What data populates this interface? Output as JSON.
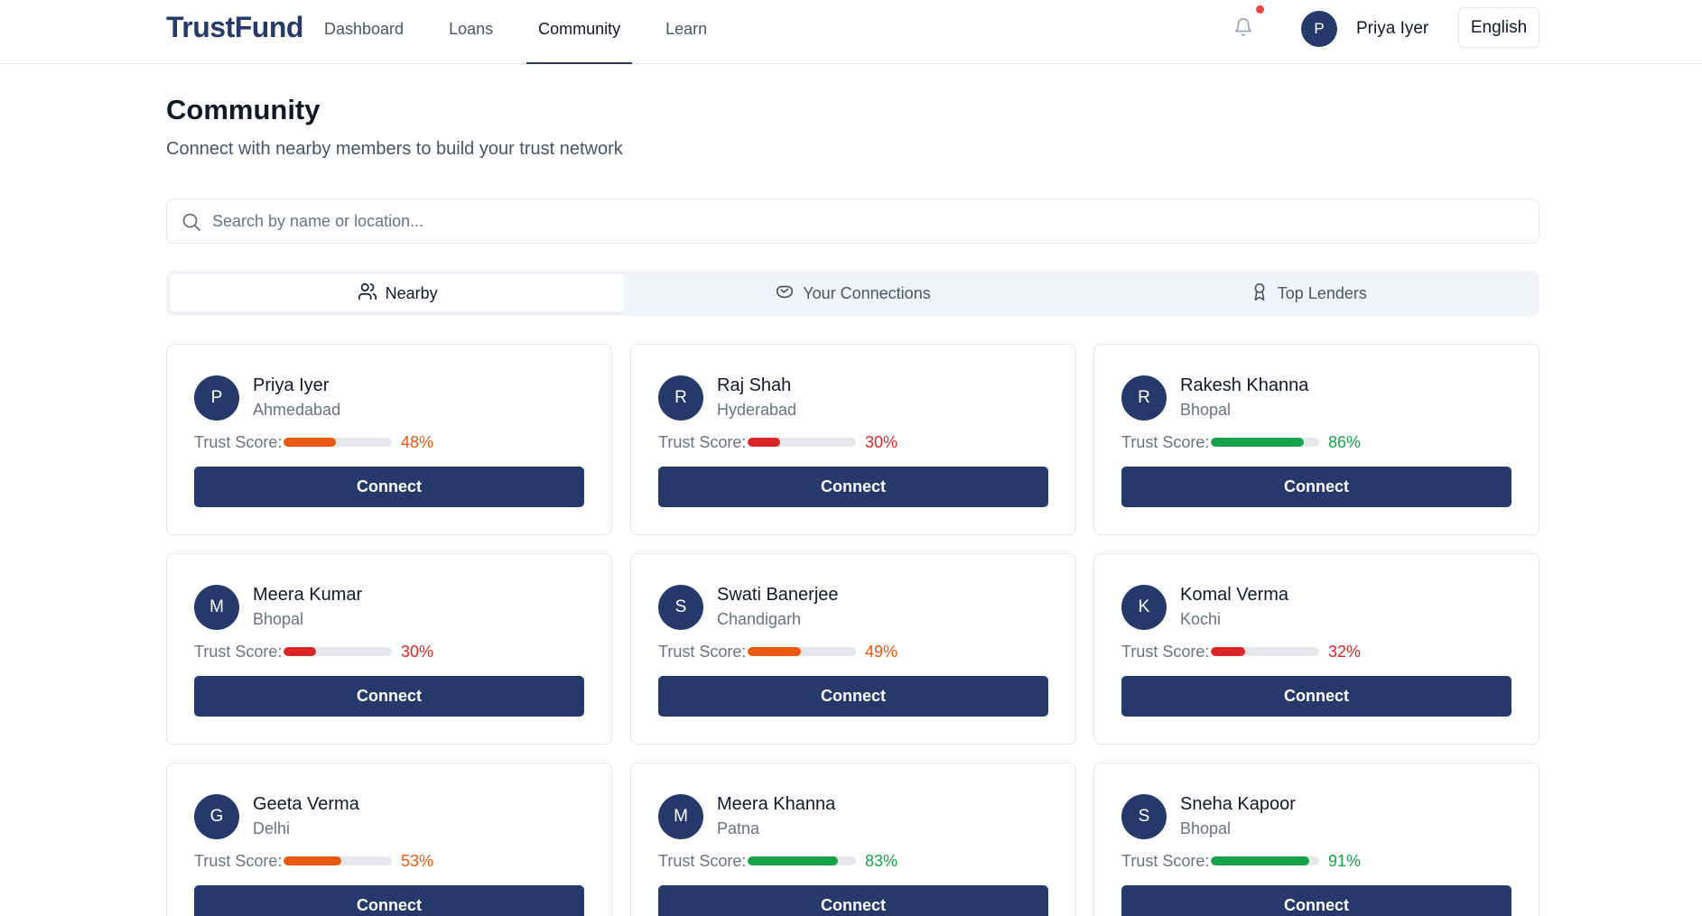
{
  "header": {
    "brand": "TrustFund",
    "nav": [
      {
        "label": "Dashboard",
        "active": false
      },
      {
        "label": "Loans",
        "active": false
      },
      {
        "label": "Community",
        "active": true
      },
      {
        "label": "Learn",
        "active": false
      }
    ],
    "user": {
      "initial": "P",
      "name": "Priya Iyer"
    },
    "language": "English",
    "has_notification": true
  },
  "page": {
    "title": "Community",
    "subtitle": "Connect with nearby members to build your trust network"
  },
  "search": {
    "placeholder": "Search by name or location...",
    "value": ""
  },
  "tabs": [
    {
      "label": "Nearby",
      "icon": "users-icon",
      "active": true
    },
    {
      "label": "Your Connections",
      "icon": "handshake-icon",
      "active": false
    },
    {
      "label": "Top Lenders",
      "icon": "award-icon",
      "active": false
    }
  ],
  "trust_label": "Trust Score:",
  "connect_label": "Connect",
  "colors": {
    "primary": "#253a6b",
    "score_low": "#dc2626",
    "score_mid": "#ea580c",
    "score_high": "#16a34a"
  },
  "members": [
    {
      "initial": "P",
      "name": "Priya Iyer",
      "location": "Ahmedabad",
      "score": 48,
      "score_text": "48%",
      "level": "mid"
    },
    {
      "initial": "R",
      "name": "Raj Shah",
      "location": "Hyderabad",
      "score": 30,
      "score_text": "30%",
      "level": "low"
    },
    {
      "initial": "R",
      "name": "Rakesh Khanna",
      "location": "Bhopal",
      "score": 86,
      "score_text": "86%",
      "level": "high"
    },
    {
      "initial": "M",
      "name": "Meera Kumar",
      "location": "Bhopal",
      "score": 30,
      "score_text": "30%",
      "level": "low"
    },
    {
      "initial": "S",
      "name": "Swati Banerjee",
      "location": "Chandigarh",
      "score": 49,
      "score_text": "49%",
      "level": "mid"
    },
    {
      "initial": "K",
      "name": "Komal Verma",
      "location": "Kochi",
      "score": 32,
      "score_text": "32%",
      "level": "low"
    },
    {
      "initial": "G",
      "name": "Geeta Verma",
      "location": "Delhi",
      "score": 53,
      "score_text": "53%",
      "level": "mid"
    },
    {
      "initial": "M",
      "name": "Meera Khanna",
      "location": "Patna",
      "score": 83,
      "score_text": "83%",
      "level": "high"
    },
    {
      "initial": "S",
      "name": "Sneha Kapoor",
      "location": "Bhopal",
      "score": 91,
      "score_text": "91%",
      "level": "high"
    }
  ]
}
